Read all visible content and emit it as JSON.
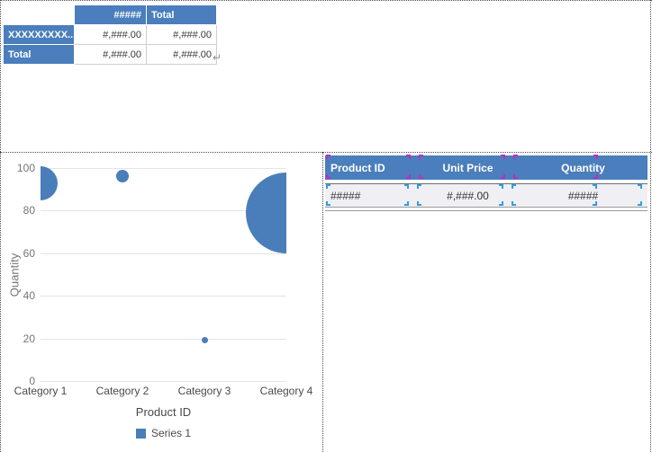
{
  "colors": {
    "accent_blue": "#4a7ebc",
    "bubble_blue": "#4a7ebb",
    "handle_magenta": "#c02cc0",
    "handle_cyan": "#2d9fe0",
    "grid_line": "#e4e4e4",
    "row_bg": "#f0eff4"
  },
  "crosstab": {
    "col_headers": [
      "#####",
      "Total"
    ],
    "rows": [
      {
        "label": "XXXXXXXXX..",
        "cells": [
          "#,###.00",
          "#,###.00"
        ]
      },
      {
        "label": "Total",
        "cells": [
          "#,###.00",
          "#,###.00"
        ]
      }
    ],
    "paragraph_mark": "↵"
  },
  "chart_data": {
    "type": "scatter",
    "subtype": "bubble",
    "title": "",
    "categories": [
      "Category 1",
      "Category 2",
      "Category 3",
      "Category 4"
    ],
    "series": [
      {
        "name": "Series 1",
        "values": [
          93,
          96,
          19,
          79
        ],
        "bubble_radius_px": [
          19,
          7,
          3.5,
          45
        ]
      }
    ],
    "xlabel": "Product ID",
    "ylabel": "Quantity",
    "ylim": [
      0,
      100
    ],
    "yticks": [
      0,
      20,
      40,
      60,
      80,
      100
    ],
    "grid": true,
    "legend_position": "bottom"
  },
  "detail_table": {
    "columns": [
      {
        "label": "Product ID",
        "align": "left"
      },
      {
        "label": "Unit Price",
        "align": "center"
      },
      {
        "label": "Quantity",
        "align": "center"
      }
    ],
    "row": [
      "#####",
      "#,###.00",
      "#####"
    ]
  }
}
